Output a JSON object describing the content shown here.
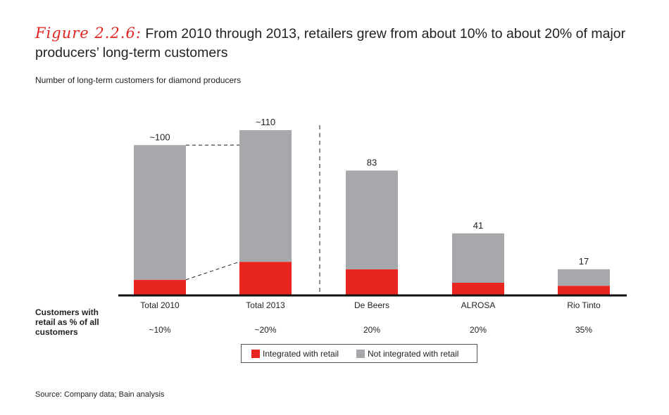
{
  "title": {
    "figure_label": "Figure 2.2.6:",
    "text": "From 2010 through 2013, retailers grew from about 10% to about 20% of major producers’ long-term customers"
  },
  "subtitle": "Number of long-term customers for diamond producers",
  "chart_data": {
    "type": "bar",
    "stacked": true,
    "categories": [
      "Total 2010",
      "Total 2013",
      "De Beers",
      "ALROSA",
      "Rio Tinto"
    ],
    "totals_labels": [
      "~100",
      "~110",
      "83",
      "41",
      "17"
    ],
    "series": [
      {
        "name": "Integrated with retail",
        "color": "#e8261f",
        "values": [
          10,
          22,
          17,
          8,
          6
        ]
      },
      {
        "name": "Not integrated with retail",
        "color": "#a7a8ab",
        "values": [
          90,
          88,
          66,
          33,
          11
        ]
      }
    ],
    "ylim": [
      0,
      110
    ],
    "row_label": "Customers with retail as % of all customers",
    "retail_share": [
      "~10%",
      "~20%",
      "20%",
      "20%",
      "35%"
    ]
  },
  "legend": {
    "integrated": "Integrated with retail",
    "not_integrated": "Not integrated with retail"
  },
  "source": "Source:  Company data; Bain analysis"
}
